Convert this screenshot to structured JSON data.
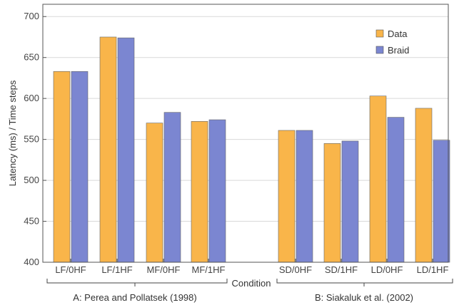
{
  "chart_data": {
    "type": "bar",
    "ylabel": "Latency (ms) / Time steps",
    "xlabel": "Condition",
    "ylim": [
      400,
      715
    ],
    "yticks": [
      400,
      450,
      500,
      550,
      600,
      650,
      700
    ],
    "grid": true,
    "legend_position": "top-right",
    "categories": [
      "LF/0HF",
      "LF/1HF",
      "MF/0HF",
      "MF/1HF",
      "SD/0HF",
      "SD/1HF",
      "LD/0HF",
      "LD/1HF"
    ],
    "series": [
      {
        "name": "Data",
        "color": "#f9b54a",
        "values": [
          633,
          675,
          570,
          572,
          561,
          545,
          603,
          588
        ]
      },
      {
        "name": "Braid",
        "color": "#7b86d1",
        "values": [
          633,
          674,
          583,
          574,
          561,
          548,
          577,
          549
        ]
      }
    ],
    "groups": [
      {
        "label": "A: Perea and Pollatsek (1998)",
        "categories": [
          "LF/0HF",
          "LF/1HF",
          "MF/0HF",
          "MF/1HF"
        ]
      },
      {
        "label": "B: Siakaluk et al. (2002)",
        "categories": [
          "SD/0HF",
          "SD/1HF",
          "LD/0HF",
          "LD/1HF"
        ]
      }
    ]
  }
}
